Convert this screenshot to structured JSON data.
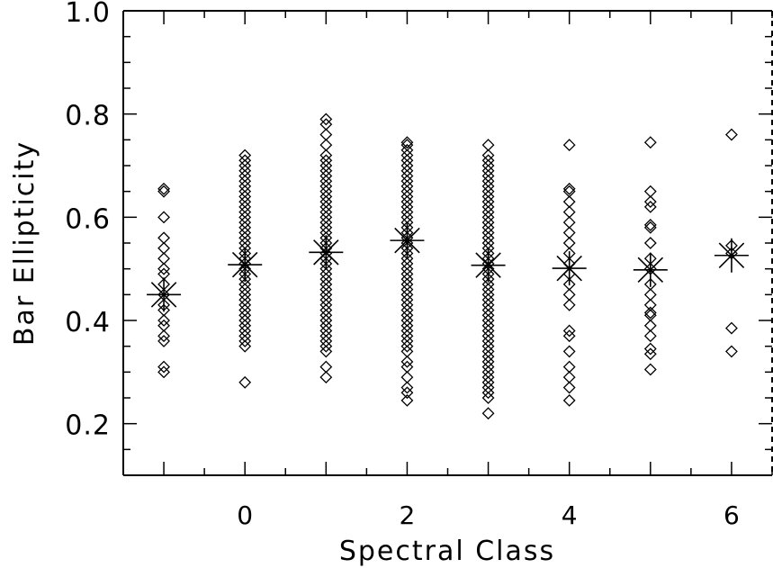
{
  "chart_data": {
    "type": "scatter",
    "xlabel": "Spectral Class",
    "ylabel": "Bar Ellipticity",
    "xlim": [
      -1.5,
      6.5
    ],
    "ylim": [
      0.1,
      1.0
    ],
    "x_ticks": [
      {
        "value": 0,
        "label": "0"
      },
      {
        "value": 2,
        "label": "2"
      },
      {
        "value": 4,
        "label": "4"
      },
      {
        "value": 6,
        "label": "6"
      }
    ],
    "y_ticks": [
      {
        "value": 0.2,
        "label": "0.2"
      },
      {
        "value": 0.4,
        "label": "0.4"
      },
      {
        "value": 0.6,
        "label": "0.6"
      },
      {
        "value": 0.8,
        "label": "0.8"
      },
      {
        "value": 1.0,
        "label": "1.0"
      }
    ],
    "grid": false,
    "series": [
      {
        "marker": "diamond",
        "points": [
          {
            "x": -1,
            "y": [
              0.3,
              0.31,
              0.36,
              0.37,
              0.39,
              0.4,
              0.42,
              0.43,
              0.45,
              0.47,
              0.49,
              0.5,
              0.52,
              0.54,
              0.56,
              0.6,
              0.65,
              0.655
            ]
          },
          {
            "x": 0,
            "y": [
              0.28,
              0.35,
              0.36,
              0.37,
              0.38,
              0.39,
              0.4,
              0.41,
              0.42,
              0.43,
              0.44,
              0.45,
              0.46,
              0.47,
              0.48,
              0.49,
              0.5,
              0.51,
              0.52,
              0.53,
              0.54,
              0.55,
              0.56,
              0.57,
              0.58,
              0.59,
              0.6,
              0.61,
              0.62,
              0.63,
              0.64,
              0.65,
              0.66,
              0.67,
              0.68,
              0.69,
              0.7,
              0.71,
              0.72
            ]
          },
          {
            "x": 1,
            "y": [
              0.29,
              0.31,
              0.34,
              0.35,
              0.36,
              0.37,
              0.38,
              0.39,
              0.4,
              0.41,
              0.42,
              0.43,
              0.44,
              0.45,
              0.46,
              0.47,
              0.48,
              0.49,
              0.5,
              0.51,
              0.52,
              0.53,
              0.54,
              0.55,
              0.56,
              0.57,
              0.58,
              0.59,
              0.6,
              0.61,
              0.62,
              0.63,
              0.64,
              0.65,
              0.66,
              0.67,
              0.68,
              0.69,
              0.7,
              0.71,
              0.72,
              0.74,
              0.76,
              0.78,
              0.79
            ]
          },
          {
            "x": 2,
            "y": [
              0.245,
              0.26,
              0.27,
              0.29,
              0.31,
              0.32,
              0.34,
              0.35,
              0.36,
              0.37,
              0.38,
              0.39,
              0.4,
              0.41,
              0.42,
              0.43,
              0.44,
              0.45,
              0.46,
              0.47,
              0.48,
              0.49,
              0.5,
              0.51,
              0.52,
              0.53,
              0.54,
              0.55,
              0.56,
              0.57,
              0.58,
              0.59,
              0.6,
              0.61,
              0.62,
              0.63,
              0.64,
              0.65,
              0.66,
              0.67,
              0.68,
              0.69,
              0.7,
              0.71,
              0.72,
              0.73,
              0.74,
              0.745
            ]
          },
          {
            "x": 3,
            "y": [
              0.22,
              0.25,
              0.26,
              0.27,
              0.28,
              0.29,
              0.3,
              0.31,
              0.32,
              0.33,
              0.34,
              0.35,
              0.36,
              0.37,
              0.38,
              0.39,
              0.4,
              0.41,
              0.42,
              0.43,
              0.44,
              0.45,
              0.46,
              0.47,
              0.48,
              0.49,
              0.5,
              0.51,
              0.52,
              0.53,
              0.54,
              0.55,
              0.56,
              0.57,
              0.58,
              0.59,
              0.6,
              0.61,
              0.62,
              0.63,
              0.64,
              0.65,
              0.66,
              0.67,
              0.68,
              0.69,
              0.7,
              0.71,
              0.72,
              0.74
            ]
          },
          {
            "x": 4,
            "y": [
              0.245,
              0.27,
              0.29,
              0.31,
              0.34,
              0.37,
              0.38,
              0.43,
              0.45,
              0.47,
              0.49,
              0.51,
              0.53,
              0.55,
              0.57,
              0.59,
              0.61,
              0.63,
              0.65,
              0.655,
              0.74
            ]
          },
          {
            "x": 5,
            "y": [
              0.305,
              0.335,
              0.345,
              0.37,
              0.39,
              0.41,
              0.415,
              0.43,
              0.45,
              0.47,
              0.5,
              0.52,
              0.55,
              0.58,
              0.585,
              0.62,
              0.63,
              0.65,
              0.745
            ]
          },
          {
            "x": 6,
            "y": [
              0.34,
              0.385,
              0.53,
              0.545,
              0.76
            ]
          }
        ]
      },
      {
        "marker": "asterisk",
        "points": [
          {
            "x": -1,
            "y": 0.45
          },
          {
            "x": 0,
            "y": 0.508
          },
          {
            "x": 1,
            "y": 0.532
          },
          {
            "x": 2,
            "y": 0.555
          },
          {
            "x": 3,
            "y": 0.507
          },
          {
            "x": 4,
            "y": 0.501
          },
          {
            "x": 5,
            "y": 0.498
          },
          {
            "x": 6,
            "y": 0.526
          }
        ]
      }
    ]
  }
}
